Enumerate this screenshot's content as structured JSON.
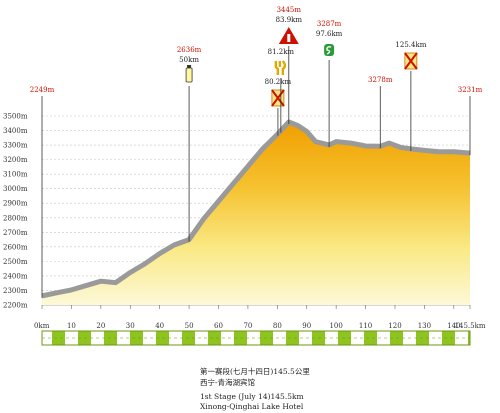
{
  "chart_data": {
    "type": "area",
    "x_unit": "km",
    "y_unit": "m",
    "xlim": [
      0,
      145.5
    ],
    "ylim": [
      2200,
      3500
    ],
    "x_ticks": [
      "0km",
      "10",
      "20",
      "30",
      "40",
      "50",
      "60",
      "70",
      "80",
      "90",
      "100",
      "110",
      "120",
      "130",
      "140",
      "145.5km"
    ],
    "y_ticks": [
      "2200m",
      "2300m",
      "2400m",
      "2500m",
      "2600m",
      "2700m",
      "2800m",
      "2900m",
      "3000m",
      "3100m",
      "3200m",
      "3300m",
      "3400m",
      "3500m"
    ],
    "x": [
      0,
      5,
      10,
      15,
      20,
      25,
      30,
      35,
      40,
      45,
      50,
      55,
      60,
      65,
      70,
      75,
      80,
      83.9,
      87,
      90,
      93,
      97.6,
      100,
      105,
      110,
      115,
      118,
      122,
      125.4,
      130,
      135,
      140,
      145.5
    ],
    "y": [
      2249,
      2270,
      2290,
      2320,
      2350,
      2340,
      2410,
      2470,
      2540,
      2600,
      2636,
      2780,
      2900,
      3020,
      3140,
      3260,
      3360,
      3445,
      3420,
      3380,
      3310,
      3287,
      3310,
      3300,
      3280,
      3278,
      3300,
      3270,
      3260,
      3250,
      3240,
      3240,
      3231
    ],
    "markers": [
      {
        "label": "2249m",
        "x": 0,
        "color": "red"
      },
      {
        "label": "2636m",
        "x": 50,
        "color": "red",
        "km": "50km",
        "icon": "water-bottle"
      },
      {
        "label": "80.2km",
        "x": 80.2,
        "icon": "forbidden-food"
      },
      {
        "label": "81.2km",
        "x": 81.2,
        "icon": "food"
      },
      {
        "label": "3445m",
        "x": 83.9,
        "color": "red",
        "km": "83.9km",
        "icon": "climb-summit"
      },
      {
        "label": "3287m",
        "x": 97.6,
        "color": "red",
        "km": "97.6km",
        "icon": "sprint"
      },
      {
        "label": "3278m",
        "x": 115,
        "color": "red"
      },
      {
        "label": "125.4km",
        "x": 125.4,
        "icon": "forbidden-bottle"
      },
      {
        "label": "3231m",
        "x": 145.5,
        "color": "red"
      }
    ]
  },
  "caption": {
    "line1": "第一赛段(七月十四日)145.5公里",
    "line2": "西宁-青海湖宾馆",
    "line3": "1st Stage (July 14)145.5km",
    "line4": "Xinong-Qinghai Lake Hotel"
  },
  "colors": {
    "profile_edge": "#9a9a9a",
    "fill_top": "#f0a000",
    "fill_mid": "#f7cc40",
    "fill_bottom": "#fdf5c8",
    "label_red": "#cc1100",
    "stripe_green": "#8fc31f"
  }
}
